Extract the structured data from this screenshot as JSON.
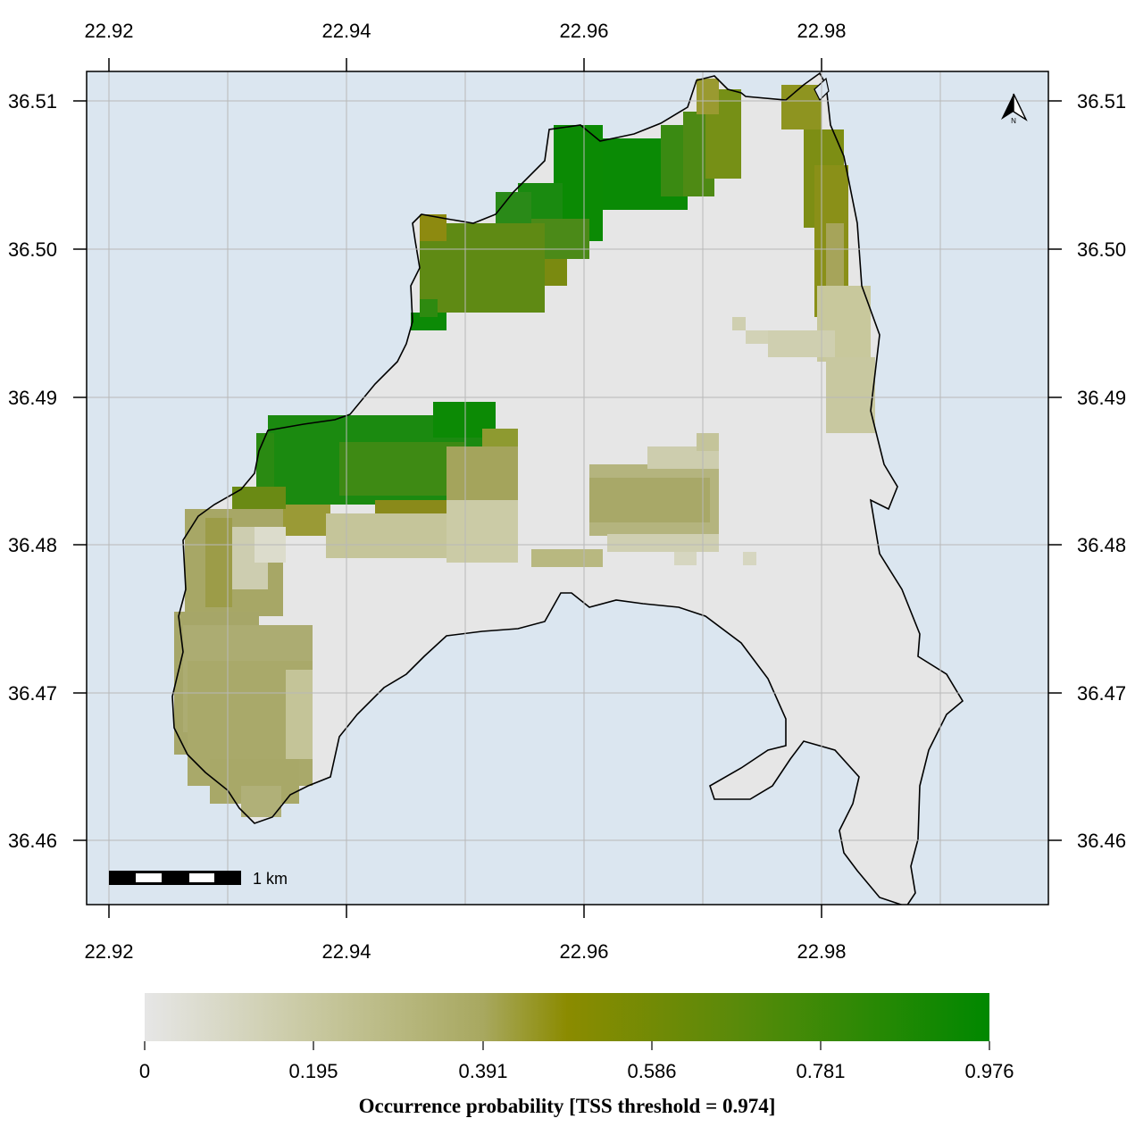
{
  "map": {
    "x_ticks": [
      "22.92",
      "22.94",
      "22.96",
      "22.98"
    ],
    "y_ticks": [
      "36.51",
      "36.50",
      "36.49",
      "36.48",
      "36.47",
      "36.46"
    ],
    "scale_bar_label": "1 km",
    "north_arrow_label": "N",
    "colors": {
      "sea": "#dbe6f0",
      "land_low": "#e6e6e6",
      "grid": "#b8b8b8"
    }
  },
  "legend": {
    "title": "Occurrence probability [TSS threshold = 0.974]",
    "ticks": [
      "0",
      "0.195",
      "0.391",
      "0.586",
      "0.781",
      "0.976"
    ],
    "colors": [
      "#e6e6e6",
      "#c8c8a0",
      "#a8a860",
      "#8b8b00",
      "#5a8a0a",
      "#008800"
    ]
  }
}
